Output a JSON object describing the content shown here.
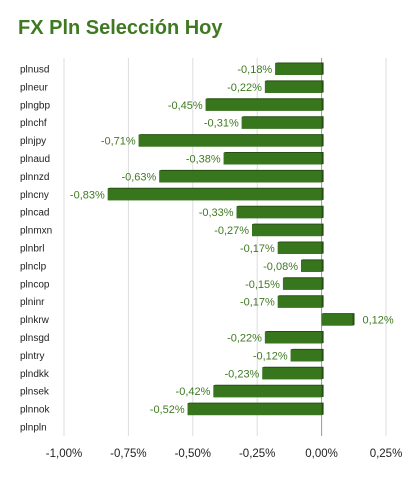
{
  "title": "FX Pln Selección Hoy",
  "chart_data": {
    "type": "bar",
    "orientation": "horizontal",
    "title": "FX Pln Selección Hoy",
    "categories": [
      "plnusd",
      "plneur",
      "plngbp",
      "plnchf",
      "plnjpy",
      "plnaud",
      "plnnzd",
      "plncny",
      "plncad",
      "plnmxn",
      "plnbrl",
      "plnclp",
      "plncop",
      "plninr",
      "plnkrw",
      "plnsgd",
      "plntry",
      "plndkk",
      "plnsek",
      "plnnok",
      "plnpln"
    ],
    "values": [
      -0.18,
      -0.22,
      -0.45,
      -0.31,
      -0.71,
      -0.38,
      -0.63,
      -0.83,
      -0.33,
      -0.27,
      -0.17,
      -0.08,
      -0.15,
      -0.17,
      0.12,
      -0.22,
      -0.12,
      -0.23,
      -0.42,
      -0.52,
      0
    ],
    "labels": [
      "-0,18%",
      "-0,22%",
      "-0,45%",
      "-0,31%",
      "-0,71%",
      "-0,38%",
      "-0,63%",
      "-0,83%",
      "-0,33%",
      "-0,27%",
      "-0,17%",
      "-0,08%",
      "-0,15%",
      "-0,17%",
      "0,12%",
      "-0,22%",
      "-0,12%",
      "-0,23%",
      "-0,42%",
      "-0,52%",
      ""
    ],
    "xlim": [
      -1.0,
      0.25
    ],
    "xticks": [
      -1.0,
      -0.75,
      -0.5,
      -0.25,
      0.0,
      0.25
    ],
    "xtick_labels": [
      "-1,00%",
      "-0,75%",
      "-0,50%",
      "-0,25%",
      "0,00%",
      "0,25%"
    ],
    "unit": "%",
    "grid": "vertical",
    "legend": "none",
    "bar_color": "#38761d",
    "label_color": "#3f7a22"
  }
}
